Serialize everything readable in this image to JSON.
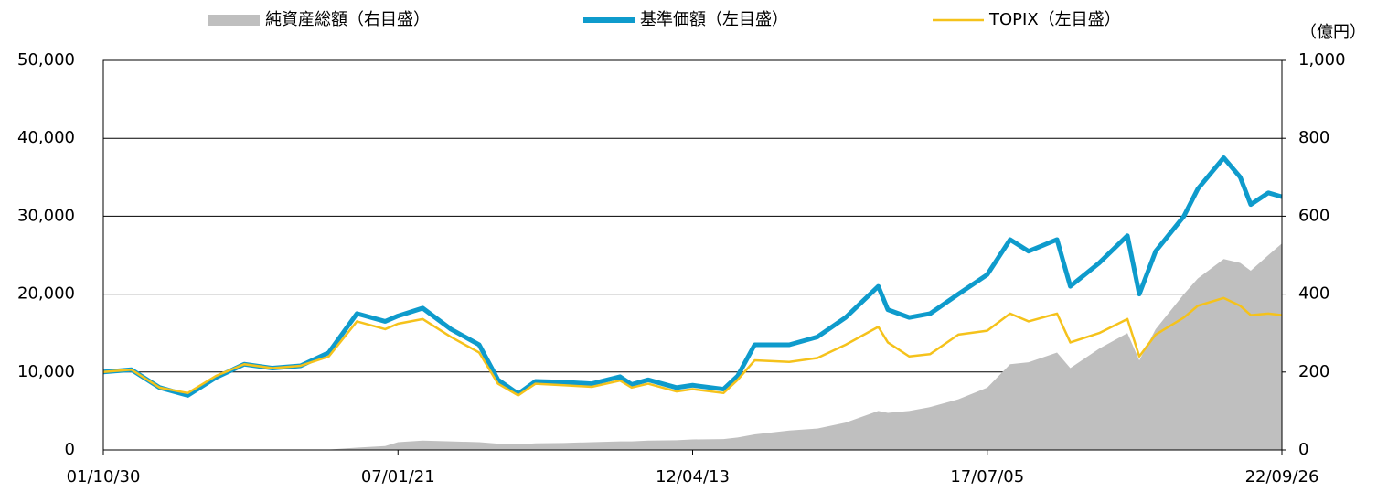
{
  "chart_data": {
    "type": "line",
    "y2_unit": "（億円）",
    "x": [
      "01/10/30",
      "02/04/30",
      "02/10/30",
      "03/04/30",
      "03/10/30",
      "04/04/30",
      "04/10/30",
      "05/04/30",
      "05/10/30",
      "06/04/30",
      "06/10/30",
      "07/01/21",
      "07/06/30",
      "07/12/30",
      "08/06/30",
      "08/10/30",
      "09/03/10",
      "09/06/30",
      "09/12/30",
      "10/06/30",
      "10/12/30",
      "11/03/15",
      "11/06/30",
      "11/12/30",
      "12/04/13",
      "12/10/30",
      "13/01/30",
      "13/05/20",
      "13/12/30",
      "14/06/30",
      "14/12/30",
      "15/07/30",
      "15/09/30",
      "16/02/15",
      "16/06/30",
      "16/12/30",
      "17/07/05",
      "17/11/30",
      "18/03/30",
      "18/09/30",
      "18/12/25",
      "19/06/30",
      "19/12/30",
      "20/03/16",
      "20/06/30",
      "20/12/30",
      "21/03/30",
      "21/09/14",
      "21/12/30",
      "22/03/08",
      "22/06/30",
      "22/09/26"
    ],
    "series": [
      {
        "name": "純資産総額（右目盛）",
        "color": "#bfbfbf",
        "axis": "y2",
        "style": "area",
        "values": [
          0,
          0,
          0,
          0,
          0,
          0,
          0,
          0,
          1,
          6,
          10,
          20,
          24,
          22,
          20,
          16,
          14,
          17,
          18,
          20,
          22,
          22,
          24,
          25,
          27,
          28,
          32,
          40,
          50,
          55,
          70,
          100,
          95,
          100,
          110,
          130,
          160,
          220,
          225,
          250,
          210,
          260,
          300,
          230,
          310,
          400,
          440,
          490,
          480,
          460,
          500,
          530
        ]
      },
      {
        "name": "基準価額（左目盛）",
        "color": "#0e9bcc",
        "style": "thick",
        "values": [
          10000,
          10300,
          8000,
          7000,
          9300,
          11000,
          10500,
          10800,
          12500,
          17500,
          16500,
          17200,
          18200,
          15500,
          13500,
          9000,
          7200,
          8800,
          8700,
          8500,
          9400,
          8400,
          9000,
          8000,
          8300,
          7800,
          9500,
          13500,
          13500,
          14500,
          17000,
          21000,
          18000,
          17000,
          17500,
          20000,
          22500,
          27000,
          25500,
          27000,
          21000,
          24000,
          27500,
          20000,
          25500,
          30000,
          33500,
          37500,
          35000,
          31500,
          33000,
          32500
        ]
      },
      {
        "name": "TOPIX（左目盛）",
        "color": "#f5c21b",
        "style": "thin",
        "values": [
          10000,
          10300,
          8000,
          7300,
          9500,
          11000,
          10500,
          10800,
          12000,
          16500,
          15500,
          16200,
          16800,
          14500,
          12500,
          8500,
          7000,
          8500,
          8300,
          8100,
          8900,
          8000,
          8500,
          7500,
          7800,
          7300,
          9000,
          11500,
          11300,
          11800,
          13500,
          15800,
          13800,
          12000,
          12300,
          14800,
          15300,
          17500,
          16500,
          17500,
          13800,
          15000,
          16800,
          12000,
          14800,
          17000,
          18500,
          19500,
          18500,
          17300,
          17500,
          17300
        ]
      }
    ],
    "xlim": [
      "01/10/30",
      "22/09/26"
    ],
    "xticks": [
      "01/10/30",
      "07/01/21",
      "12/04/13",
      "17/07/05",
      "22/09/26"
    ],
    "ylim": [
      0,
      50000
    ],
    "yticks": [
      0,
      {
        "value": 10000,
        "label": "10,000"
      },
      {
        "value": 20000,
        "label": "20,000"
      },
      {
        "value": 30000,
        "label": "30,000"
      },
      {
        "value": 40000,
        "label": "40,000"
      },
      {
        "value": 50000,
        "label": "50,000"
      }
    ],
    "y2lim": [
      0,
      1000
    ],
    "y2ticks": [
      0,
      200,
      400,
      600,
      800,
      {
        "value": 1000,
        "label": "1,000"
      }
    ],
    "grid": true
  }
}
